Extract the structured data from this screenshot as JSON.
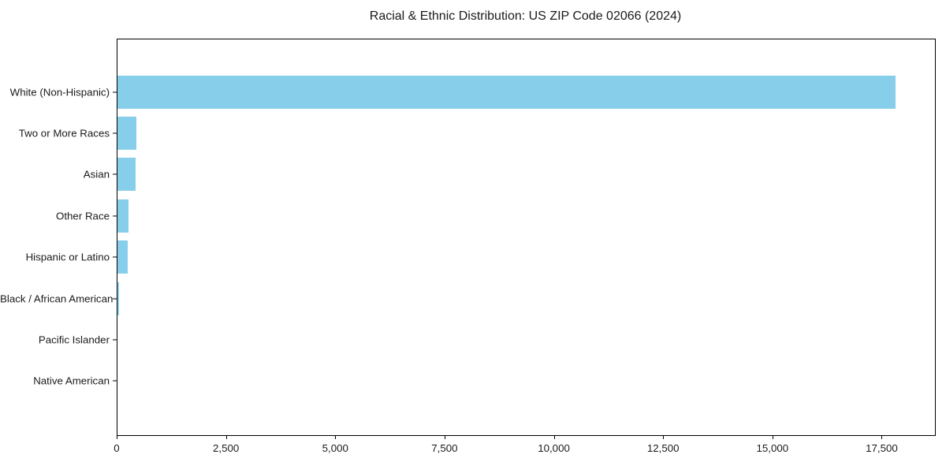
{
  "title": "Racial & Ethnic Distribution: US ZIP Code 02066 (2024)",
  "colors": {
    "bar": "#87CEEB",
    "text": "#1a1a1a",
    "spine": "#000000",
    "background": "#ffffff"
  },
  "chart_data": {
    "type": "bar",
    "orientation": "horizontal",
    "title": "Racial & Ethnic Distribution: US ZIP Code 02066 (2024)",
    "categories": [
      "White (Non-Hispanic)",
      "Two or More Races",
      "Asian",
      "Other Race",
      "Hispanic or Latino",
      "Black / African American",
      "Pacific Islander",
      "Native American"
    ],
    "values": [
      17800,
      430,
      420,
      260,
      230,
      30,
      0,
      0
    ],
    "xlabel": "",
    "ylabel": "",
    "xlim": [
      0,
      18700
    ],
    "xticks": [
      0,
      2500,
      5000,
      7500,
      10000,
      12500,
      15000,
      17500
    ],
    "xtick_labels": [
      "0",
      "2,500",
      "5,000",
      "7,500",
      "10,000",
      "12,500",
      "15,000",
      "17,500"
    ],
    "grid": false,
    "legend": null,
    "bar_color": "#87CEEB",
    "sort_order": "descending"
  }
}
